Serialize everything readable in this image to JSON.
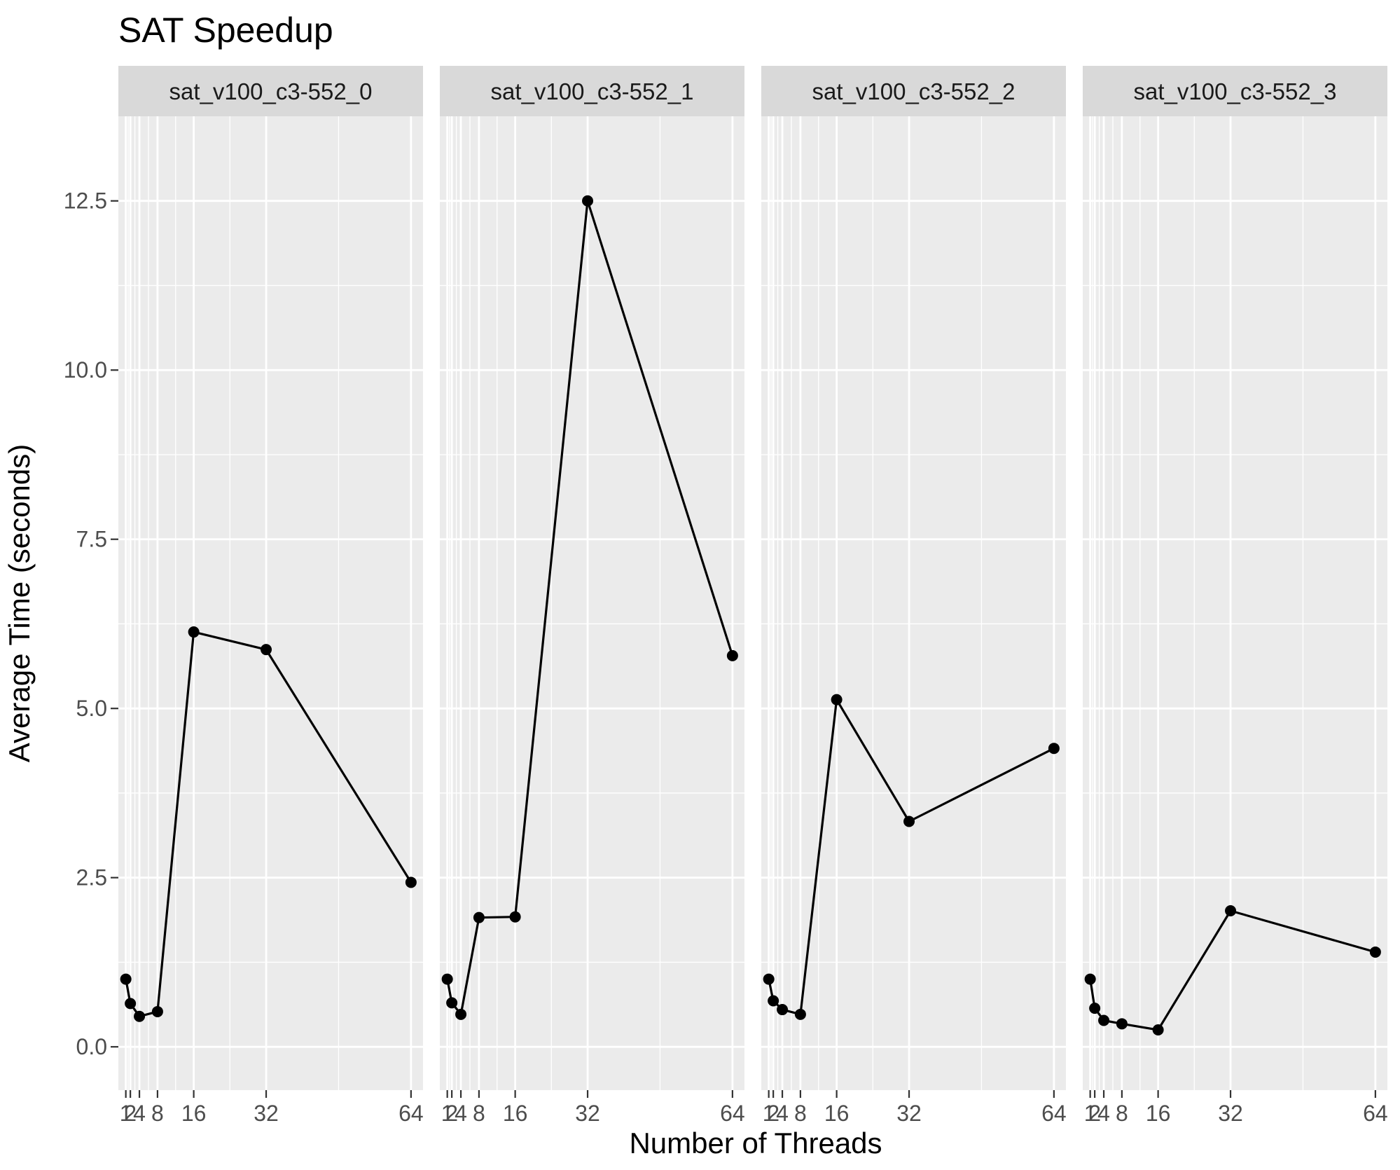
{
  "chart_data": {
    "type": "line",
    "title": "SAT Speedup",
    "xlabel": "Number of Threads",
    "ylabel": "Average Time (seconds)",
    "x_ticks": [
      1,
      2,
      4,
      8,
      16,
      32,
      64
    ],
    "y_ticks": [
      0.0,
      2.5,
      5.0,
      7.5,
      10.0,
      12.5
    ],
    "y_tick_labels": [
      "0.0",
      "2.5",
      "5.0",
      "7.5",
      "10.0",
      "12.5"
    ],
    "xlim": [
      -0.65,
      66.65
    ],
    "ylim": [
      -0.64,
      13.75
    ],
    "grid": true,
    "panel_background": "#ebebeb",
    "strip_background": "#d9d9d9",
    "line_color": "#000000",
    "panels": [
      {
        "name": "sat_v100_c3-552_0",
        "x": [
          1,
          2,
          4,
          8,
          16,
          32,
          64
        ],
        "values": [
          1.0,
          0.64,
          0.45,
          0.52,
          6.13,
          5.87,
          2.43
        ]
      },
      {
        "name": "sat_v100_c3-552_1",
        "x": [
          1,
          2,
          4,
          8,
          16,
          32,
          64
        ],
        "values": [
          1.0,
          0.65,
          0.48,
          1.91,
          1.92,
          12.5,
          5.78
        ]
      },
      {
        "name": "sat_v100_c3-552_2",
        "x": [
          1,
          2,
          4,
          8,
          16,
          32,
          64
        ],
        "values": [
          1.0,
          0.68,
          0.55,
          0.48,
          5.13,
          3.33,
          4.41
        ]
      },
      {
        "name": "sat_v100_c3-552_3",
        "x": [
          1,
          2,
          4,
          8,
          16,
          32,
          64
        ],
        "values": [
          1.0,
          0.57,
          0.39,
          0.34,
          0.25,
          2.01,
          1.4
        ]
      }
    ]
  }
}
